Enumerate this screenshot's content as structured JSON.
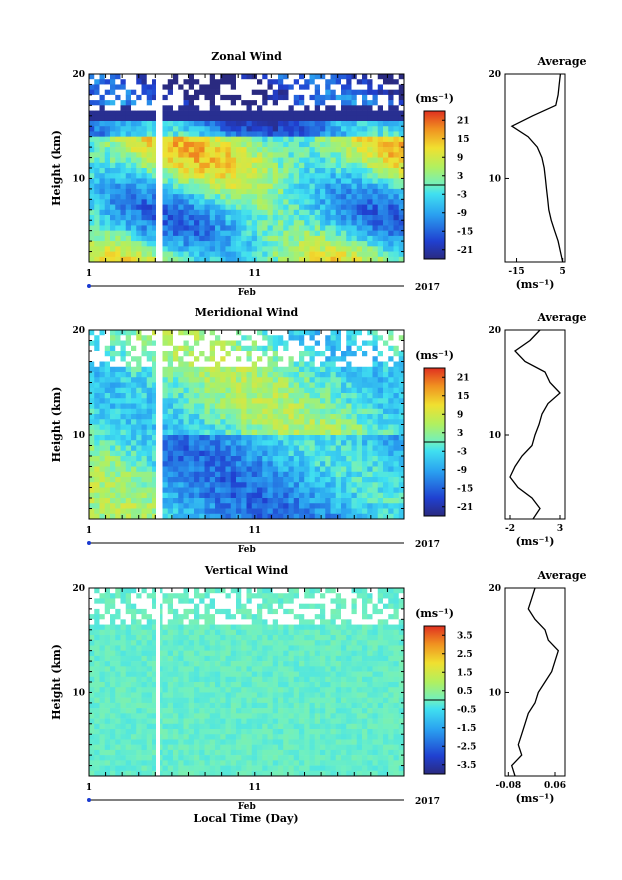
{
  "figure": {
    "x_axis_label": "Local Time (Day)",
    "month_label": "Feb",
    "year_label": "2017"
  },
  "chart_data": [
    {
      "type": "heatmap",
      "title": "Zonal Wind",
      "ylabel": "Height (km)",
      "ylim": [
        2,
        20
      ],
      "y_ticks": [
        10,
        20
      ],
      "x_ticks": [
        1,
        11
      ],
      "xlim": [
        1,
        20
      ],
      "colorbar": {
        "unit": "(ms⁻¹)",
        "range": [
          -24,
          24
        ],
        "ticks": [
          21,
          15,
          9,
          3,
          -3,
          -9,
          -15,
          -21
        ]
      },
      "average_profile": {
        "title": "Average",
        "xlabel": "(ms⁻¹)",
        "xlim": [
          -20,
          6
        ],
        "x_ticks": [
          -15,
          5
        ],
        "heights": [
          2,
          3,
          4,
          5,
          6,
          7,
          8,
          9,
          10,
          11,
          12,
          13,
          14,
          15,
          16,
          17,
          18,
          19,
          20
        ],
        "values": [
          5,
          4,
          3,
          1.5,
          0,
          -1,
          -1.5,
          -2,
          -2.5,
          -3,
          -4,
          -6,
          -10,
          -17,
          -8,
          2,
          3,
          3.5,
          4
        ]
      }
    },
    {
      "type": "heatmap",
      "title": "Meridional Wind",
      "ylabel": "Height (km)",
      "ylim": [
        2,
        20
      ],
      "y_ticks": [
        10,
        20
      ],
      "x_ticks": [
        1,
        11
      ],
      "xlim": [
        1,
        20
      ],
      "colorbar": {
        "unit": "(ms⁻¹)",
        "range": [
          -24,
          24
        ],
        "ticks": [
          21,
          15,
          9,
          3,
          -3,
          -9,
          -15,
          -21
        ]
      },
      "average_profile": {
        "title": "Average",
        "xlabel": "(ms⁻¹)",
        "xlim": [
          -2.5,
          3.5
        ],
        "x_ticks": [
          -2,
          3
        ],
        "heights": [
          2,
          3,
          4,
          5,
          6,
          7,
          8,
          9,
          10,
          11,
          12,
          13,
          14,
          15,
          16,
          17,
          18,
          19,
          20
        ],
        "values": [
          0.3,
          1.0,
          0.2,
          -1.2,
          -2.0,
          -1.5,
          -0.8,
          0.2,
          0.5,
          0.9,
          1.2,
          1.8,
          3.0,
          2.0,
          1.5,
          -0.5,
          -1.5,
          0,
          1.0
        ]
      }
    },
    {
      "type": "heatmap",
      "title": "Vertical Wind",
      "ylabel": "Height (km)",
      "ylim": [
        2,
        20
      ],
      "y_ticks": [
        10,
        20
      ],
      "x_ticks": [
        1,
        11
      ],
      "xlim": [
        1,
        20
      ],
      "colorbar": {
        "unit": "(ms⁻¹)",
        "range": [
          -4,
          4
        ],
        "ticks": [
          3.5,
          2.5,
          1.5,
          0.5,
          -0.5,
          -1.5,
          -2.5,
          -3.5
        ]
      },
      "average_profile": {
        "title": "Average",
        "xlabel": "(ms⁻¹)",
        "xlim": [
          -0.09,
          0.09
        ],
        "x_ticks": [
          -0.08,
          0.06
        ],
        "x_tick_labels": [
          "-0.08",
          "0.06"
        ],
        "heights": [
          2,
          3,
          4,
          5,
          6,
          7,
          8,
          9,
          10,
          11,
          12,
          13,
          14,
          15,
          16,
          17,
          18,
          19,
          20
        ],
        "values": [
          -0.06,
          -0.07,
          -0.04,
          -0.05,
          -0.04,
          -0.03,
          -0.02,
          0.0,
          0.01,
          0.03,
          0.05,
          0.06,
          0.07,
          0.04,
          0.03,
          0.0,
          -0.02,
          -0.01,
          0.0
        ]
      }
    }
  ]
}
